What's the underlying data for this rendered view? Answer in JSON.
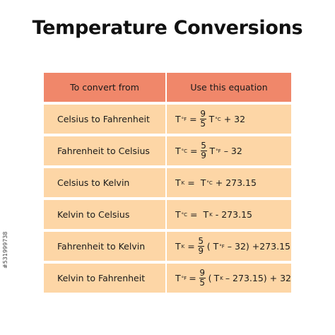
{
  "title": "Temperature Conversions",
  "table": {
    "headers": [
      "To convert from",
      "Use this equation"
    ],
    "rows": [
      {
        "from": "Celsius to Fahrenheit",
        "eq": {
          "lhs": "T",
          "lhs_sub": "°F",
          "eq": "=",
          "num": "9",
          "den": "5",
          "t": "T",
          "t_sub": "°C",
          "rest": "+ 32"
        }
      },
      {
        "from": "Fahrenheit to Celsius",
        "eq": {
          "lhs": "T",
          "lhs_sub": "°C",
          "eq": "=",
          "num": "5",
          "den": "9",
          "t": "T",
          "t_sub": "°F",
          "rest": "– 32"
        }
      },
      {
        "from": "Celsius to Kelvin",
        "eq": {
          "lhs": "T",
          "lhs_sub": "K",
          "eq": "=",
          "t": "T",
          "t_sub": "°C",
          "rest": "+ 273.15"
        }
      },
      {
        "from": "Kelvin to Celsius",
        "eq": {
          "lhs": "T",
          "lhs_sub": "°C",
          "eq": "=",
          "t": "T",
          "t_sub": "K",
          "rest": "- 273.15"
        }
      },
      {
        "from": "Fahrenheit to Kelvin",
        "eq": {
          "lhs": "T",
          "lhs_sub": "K",
          "eq": "=",
          "num": "5",
          "den": "9",
          "pre": "(",
          "t": "T",
          "t_sub": "°F",
          "rest": "– 32) +273.15"
        }
      },
      {
        "from": "Kelvin to Fahrenheit",
        "eq": {
          "lhs": "T",
          "lhs_sub": "°F",
          "eq": "=",
          "num": "9",
          "den": "5",
          "pre": "(",
          "t": "T",
          "t_sub": "K",
          "rest": "– 273.15) + 32"
        }
      }
    ]
  },
  "side_id": "#531999738"
}
